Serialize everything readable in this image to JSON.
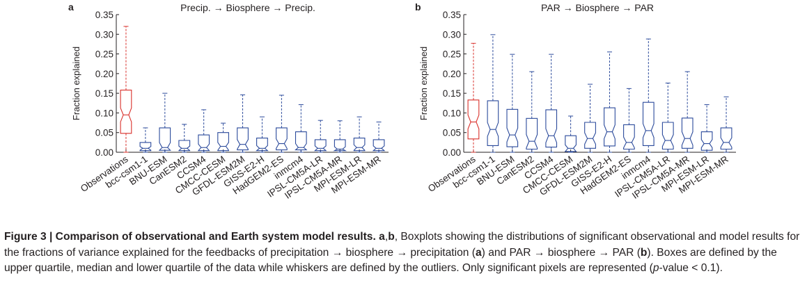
{
  "figure": {
    "caption_label": "Figure 3 | Comparison of observational and Earth system model results.",
    "caption_panels": "a",
    "caption_panels_sep": ",",
    "caption_panels_b": "b",
    "caption_text_1": ", Boxplots showing the distributions of significant observational and model results for the fractions of variance explained for the feedbacks of precipitation → biosphere → precipitation (",
    "caption_ref_a": "a",
    "caption_text_2": ") and PAR → biosphere → PAR (",
    "caption_ref_b": "b",
    "caption_text_3": "). Boxes are defined by the upper quartile, median and lower quartile of the data while whiskers are defined by the outliers. Only significant pixels are represented (",
    "caption_pvalue": "p",
    "caption_text_4": "-value < 0.1)."
  },
  "colors": {
    "observations": "#d9302b",
    "models": "#2b4a9b",
    "axis": "#231f20"
  },
  "chart_data": [
    {
      "type": "boxplot",
      "panel_label": "a",
      "title": "Precip. → Biosphere → Precip.",
      "ylabel": "Fraction explained",
      "ylim": [
        0,
        0.35
      ],
      "yticks": [
        0.0,
        0.05,
        0.1,
        0.15,
        0.2,
        0.25,
        0.3,
        0.35
      ],
      "ytick_labels": [
        "0.00",
        "0.05",
        "0.10",
        "0.15",
        "0.20",
        "0.25",
        "0.30",
        "0.35"
      ],
      "notched": true,
      "categories": [
        "Observations",
        "bcc-csm1-1",
        "BNU-ESM",
        "CanESM2",
        "CCSM4",
        "CMCC-CESM",
        "GFDL-ESM2M",
        "GISS-E2-H",
        "HadGEM2-ES",
        "inmcm4",
        "IPSL-CM5A-LR",
        "IPSL-CM5A-MR",
        "MPI-ESM-LR",
        "MPI-ESM-MR"
      ],
      "boxes": [
        {
          "whislo": 0.0,
          "q1": 0.048,
          "med": 0.095,
          "q3": 0.158,
          "whishi": 0.32
        },
        {
          "whislo": 0.0,
          "q1": 0.004,
          "med": 0.01,
          "q3": 0.025,
          "whishi": 0.062
        },
        {
          "whislo": 0.0,
          "q1": 0.005,
          "med": 0.012,
          "q3": 0.062,
          "whishi": 0.15
        },
        {
          "whislo": 0.0,
          "q1": 0.004,
          "med": 0.01,
          "q3": 0.03,
          "whishi": 0.071
        },
        {
          "whislo": 0.0,
          "q1": 0.004,
          "med": 0.012,
          "q3": 0.044,
          "whishi": 0.108
        },
        {
          "whislo": 0.0,
          "q1": 0.004,
          "med": 0.015,
          "q3": 0.05,
          "whishi": 0.074
        },
        {
          "whislo": 0.0,
          "q1": 0.006,
          "med": 0.02,
          "q3": 0.062,
          "whishi": 0.146
        },
        {
          "whislo": 0.0,
          "q1": 0.004,
          "med": 0.01,
          "q3": 0.036,
          "whishi": 0.09
        },
        {
          "whislo": 0.0,
          "q1": 0.006,
          "med": 0.022,
          "q3": 0.062,
          "whishi": 0.145
        },
        {
          "whislo": 0.0,
          "q1": 0.006,
          "med": 0.012,
          "q3": 0.052,
          "whishi": 0.121
        },
        {
          "whislo": 0.0,
          "q1": 0.004,
          "med": 0.01,
          "q3": 0.032,
          "whishi": 0.081
        },
        {
          "whislo": 0.0,
          "q1": 0.004,
          "med": 0.008,
          "q3": 0.032,
          "whishi": 0.08
        },
        {
          "whislo": 0.0,
          "q1": 0.004,
          "med": 0.012,
          "q3": 0.036,
          "whishi": 0.09
        },
        {
          "whislo": 0.0,
          "q1": 0.004,
          "med": 0.01,
          "q3": 0.032,
          "whishi": 0.077
        }
      ]
    },
    {
      "type": "boxplot",
      "panel_label": "b",
      "title": "PAR → Biosphere → PAR",
      "ylabel": "Fraction explained",
      "ylim": [
        0,
        0.35
      ],
      "yticks": [
        0.0,
        0.05,
        0.1,
        0.15,
        0.2,
        0.25,
        0.3,
        0.35
      ],
      "ytick_labels": [
        "0.00",
        "0.05",
        "0.10",
        "0.15",
        "0.20",
        "0.25",
        "0.30",
        "0.35"
      ],
      "notched": true,
      "categories": [
        "Observations",
        "bcc-csm1-1",
        "BNU-ESM",
        "CanESM2",
        "CCSM4",
        "CMCC-CESM",
        "GFDL-ESM2M",
        "GISS-E2-H",
        "HadGEM2-ES",
        "inmcm4",
        "IPSL-CM5A-LR",
        "IPSL-CM5A-MR",
        "MPI-ESM-LR",
        "MPI-ESM-MR"
      ],
      "boxes": [
        {
          "whislo": 0.0,
          "q1": 0.034,
          "med": 0.077,
          "q3": 0.133,
          "whishi": 0.277
        },
        {
          "whislo": 0.0,
          "q1": 0.017,
          "med": 0.058,
          "q3": 0.131,
          "whishi": 0.299
        },
        {
          "whislo": 0.0,
          "q1": 0.014,
          "med": 0.044,
          "q3": 0.109,
          "whishi": 0.249
        },
        {
          "whislo": 0.0,
          "q1": 0.008,
          "med": 0.028,
          "q3": 0.086,
          "whishi": 0.205
        },
        {
          "whislo": 0.0,
          "q1": 0.013,
          "med": 0.042,
          "q3": 0.108,
          "whishi": 0.249
        },
        {
          "whislo": 0.0,
          "q1": 0.002,
          "med": 0.01,
          "q3": 0.042,
          "whishi": 0.092
        },
        {
          "whislo": 0.0,
          "q1": 0.01,
          "med": 0.035,
          "q3": 0.076,
          "whishi": 0.173
        },
        {
          "whislo": 0.0,
          "q1": 0.016,
          "med": 0.052,
          "q3": 0.113,
          "whishi": 0.255
        },
        {
          "whislo": 0.0,
          "q1": 0.008,
          "med": 0.025,
          "q3": 0.07,
          "whishi": 0.162
        },
        {
          "whislo": 0.0,
          "q1": 0.017,
          "med": 0.055,
          "q3": 0.127,
          "whishi": 0.288
        },
        {
          "whislo": 0.0,
          "q1": 0.008,
          "med": 0.03,
          "q3": 0.076,
          "whishi": 0.176
        },
        {
          "whislo": 0.0,
          "q1": 0.01,
          "med": 0.035,
          "q3": 0.087,
          "whishi": 0.205
        },
        {
          "whislo": 0.0,
          "q1": 0.005,
          "med": 0.022,
          "q3": 0.052,
          "whishi": 0.121
        },
        {
          "whislo": 0.0,
          "q1": 0.008,
          "med": 0.025,
          "q3": 0.062,
          "whishi": 0.141
        }
      ]
    }
  ]
}
